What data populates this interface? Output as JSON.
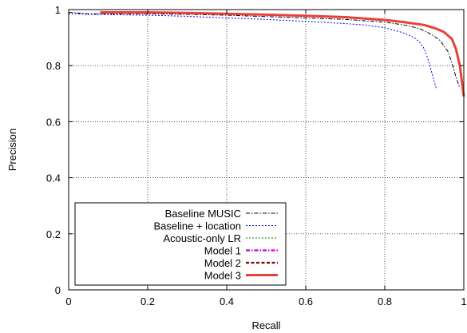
{
  "chart_data": {
    "type": "line",
    "xlabel": "Recall",
    "ylabel": "Precision",
    "xlim": [
      0,
      1
    ],
    "ylim": [
      0,
      1
    ],
    "x_ticks": [
      0,
      0.2,
      0.4,
      0.6,
      0.8,
      1
    ],
    "x_tick_labels": [
      "0",
      "0.2",
      "0.4",
      "0.6",
      "0.8",
      "1"
    ],
    "y_ticks": [
      0,
      0.2,
      0.4,
      0.6,
      0.8,
      1
    ],
    "y_tick_labels": [
      "0",
      "0.2",
      "0.4",
      "0.6",
      "0.8",
      "1"
    ],
    "grid": true,
    "legend_position": "lower-left",
    "series": [
      {
        "name": "Baseline MUSIC",
        "color": "#000000",
        "dash": "dashdot",
        "x": [
          0,
          0.05,
          0.1,
          0.2,
          0.3,
          0.4,
          0.5,
          0.6,
          0.7,
          0.8,
          0.85,
          0.88,
          0.9,
          0.92,
          0.94,
          0.96,
          0.97,
          0.98,
          0.99
        ],
        "y": [
          0.99,
          0.985,
          0.985,
          0.985,
          0.983,
          0.98,
          0.975,
          0.97,
          0.965,
          0.955,
          0.945,
          0.935,
          0.925,
          0.91,
          0.89,
          0.85,
          0.81,
          0.76,
          0.72
        ]
      },
      {
        "name": "Baseline + location",
        "color": "#0000ff",
        "dash": "dotted",
        "x": [
          0,
          0.02,
          0.05,
          0.1,
          0.2,
          0.3,
          0.4,
          0.5,
          0.6,
          0.7,
          0.75,
          0.8,
          0.84,
          0.86,
          0.88,
          0.89,
          0.9,
          0.91,
          0.92,
          0.93
        ],
        "y": [
          0.985,
          0.985,
          0.983,
          0.982,
          0.98,
          0.976,
          0.97,
          0.965,
          0.958,
          0.95,
          0.945,
          0.935,
          0.92,
          0.91,
          0.895,
          0.88,
          0.86,
          0.82,
          0.77,
          0.72
        ]
      },
      {
        "name": "Acoustic-only LR",
        "color": "#008000",
        "dash": "dotted",
        "x": [
          0.08,
          0.1,
          0.2,
          0.3,
          0.4,
          0.5,
          0.6,
          0.7,
          0.8,
          0.85,
          0.9,
          0.93,
          0.95,
          0.97,
          0.98,
          0.99,
          1.0
        ],
        "y": [
          0.99,
          0.99,
          0.99,
          0.988,
          0.985,
          0.982,
          0.978,
          0.973,
          0.963,
          0.955,
          0.945,
          0.932,
          0.92,
          0.895,
          0.86,
          0.8,
          0.69
        ]
      },
      {
        "name": "Model 1",
        "color": "#cc00cc",
        "dash": "dashdot",
        "x": [
          0.08,
          0.1,
          0.2,
          0.3,
          0.4,
          0.5,
          0.6,
          0.7,
          0.8,
          0.85,
          0.9,
          0.93,
          0.95,
          0.97,
          0.98,
          0.99,
          1.0
        ],
        "y": [
          0.99,
          0.99,
          0.99,
          0.988,
          0.985,
          0.982,
          0.978,
          0.973,
          0.963,
          0.955,
          0.945,
          0.932,
          0.92,
          0.895,
          0.86,
          0.8,
          0.69
        ]
      },
      {
        "name": "Model 2",
        "color": "#800000",
        "dash": "dashed",
        "x": [
          0.08,
          0.1,
          0.2,
          0.3,
          0.4,
          0.5,
          0.6,
          0.7,
          0.8,
          0.85,
          0.9,
          0.93,
          0.95,
          0.97,
          0.98,
          0.99,
          1.0
        ],
        "y": [
          0.99,
          0.99,
          0.99,
          0.988,
          0.985,
          0.982,
          0.978,
          0.973,
          0.963,
          0.955,
          0.945,
          0.932,
          0.92,
          0.895,
          0.86,
          0.8,
          0.69
        ]
      },
      {
        "name": "Model 3",
        "color": "#e8403a",
        "dash": "solid",
        "x": [
          0.08,
          0.1,
          0.2,
          0.3,
          0.4,
          0.5,
          0.6,
          0.7,
          0.8,
          0.85,
          0.9,
          0.93,
          0.95,
          0.97,
          0.98,
          0.99,
          1.0
        ],
        "y": [
          0.99,
          0.99,
          0.99,
          0.988,
          0.985,
          0.982,
          0.978,
          0.973,
          0.963,
          0.955,
          0.945,
          0.932,
          0.92,
          0.895,
          0.86,
          0.8,
          0.69
        ]
      }
    ]
  }
}
